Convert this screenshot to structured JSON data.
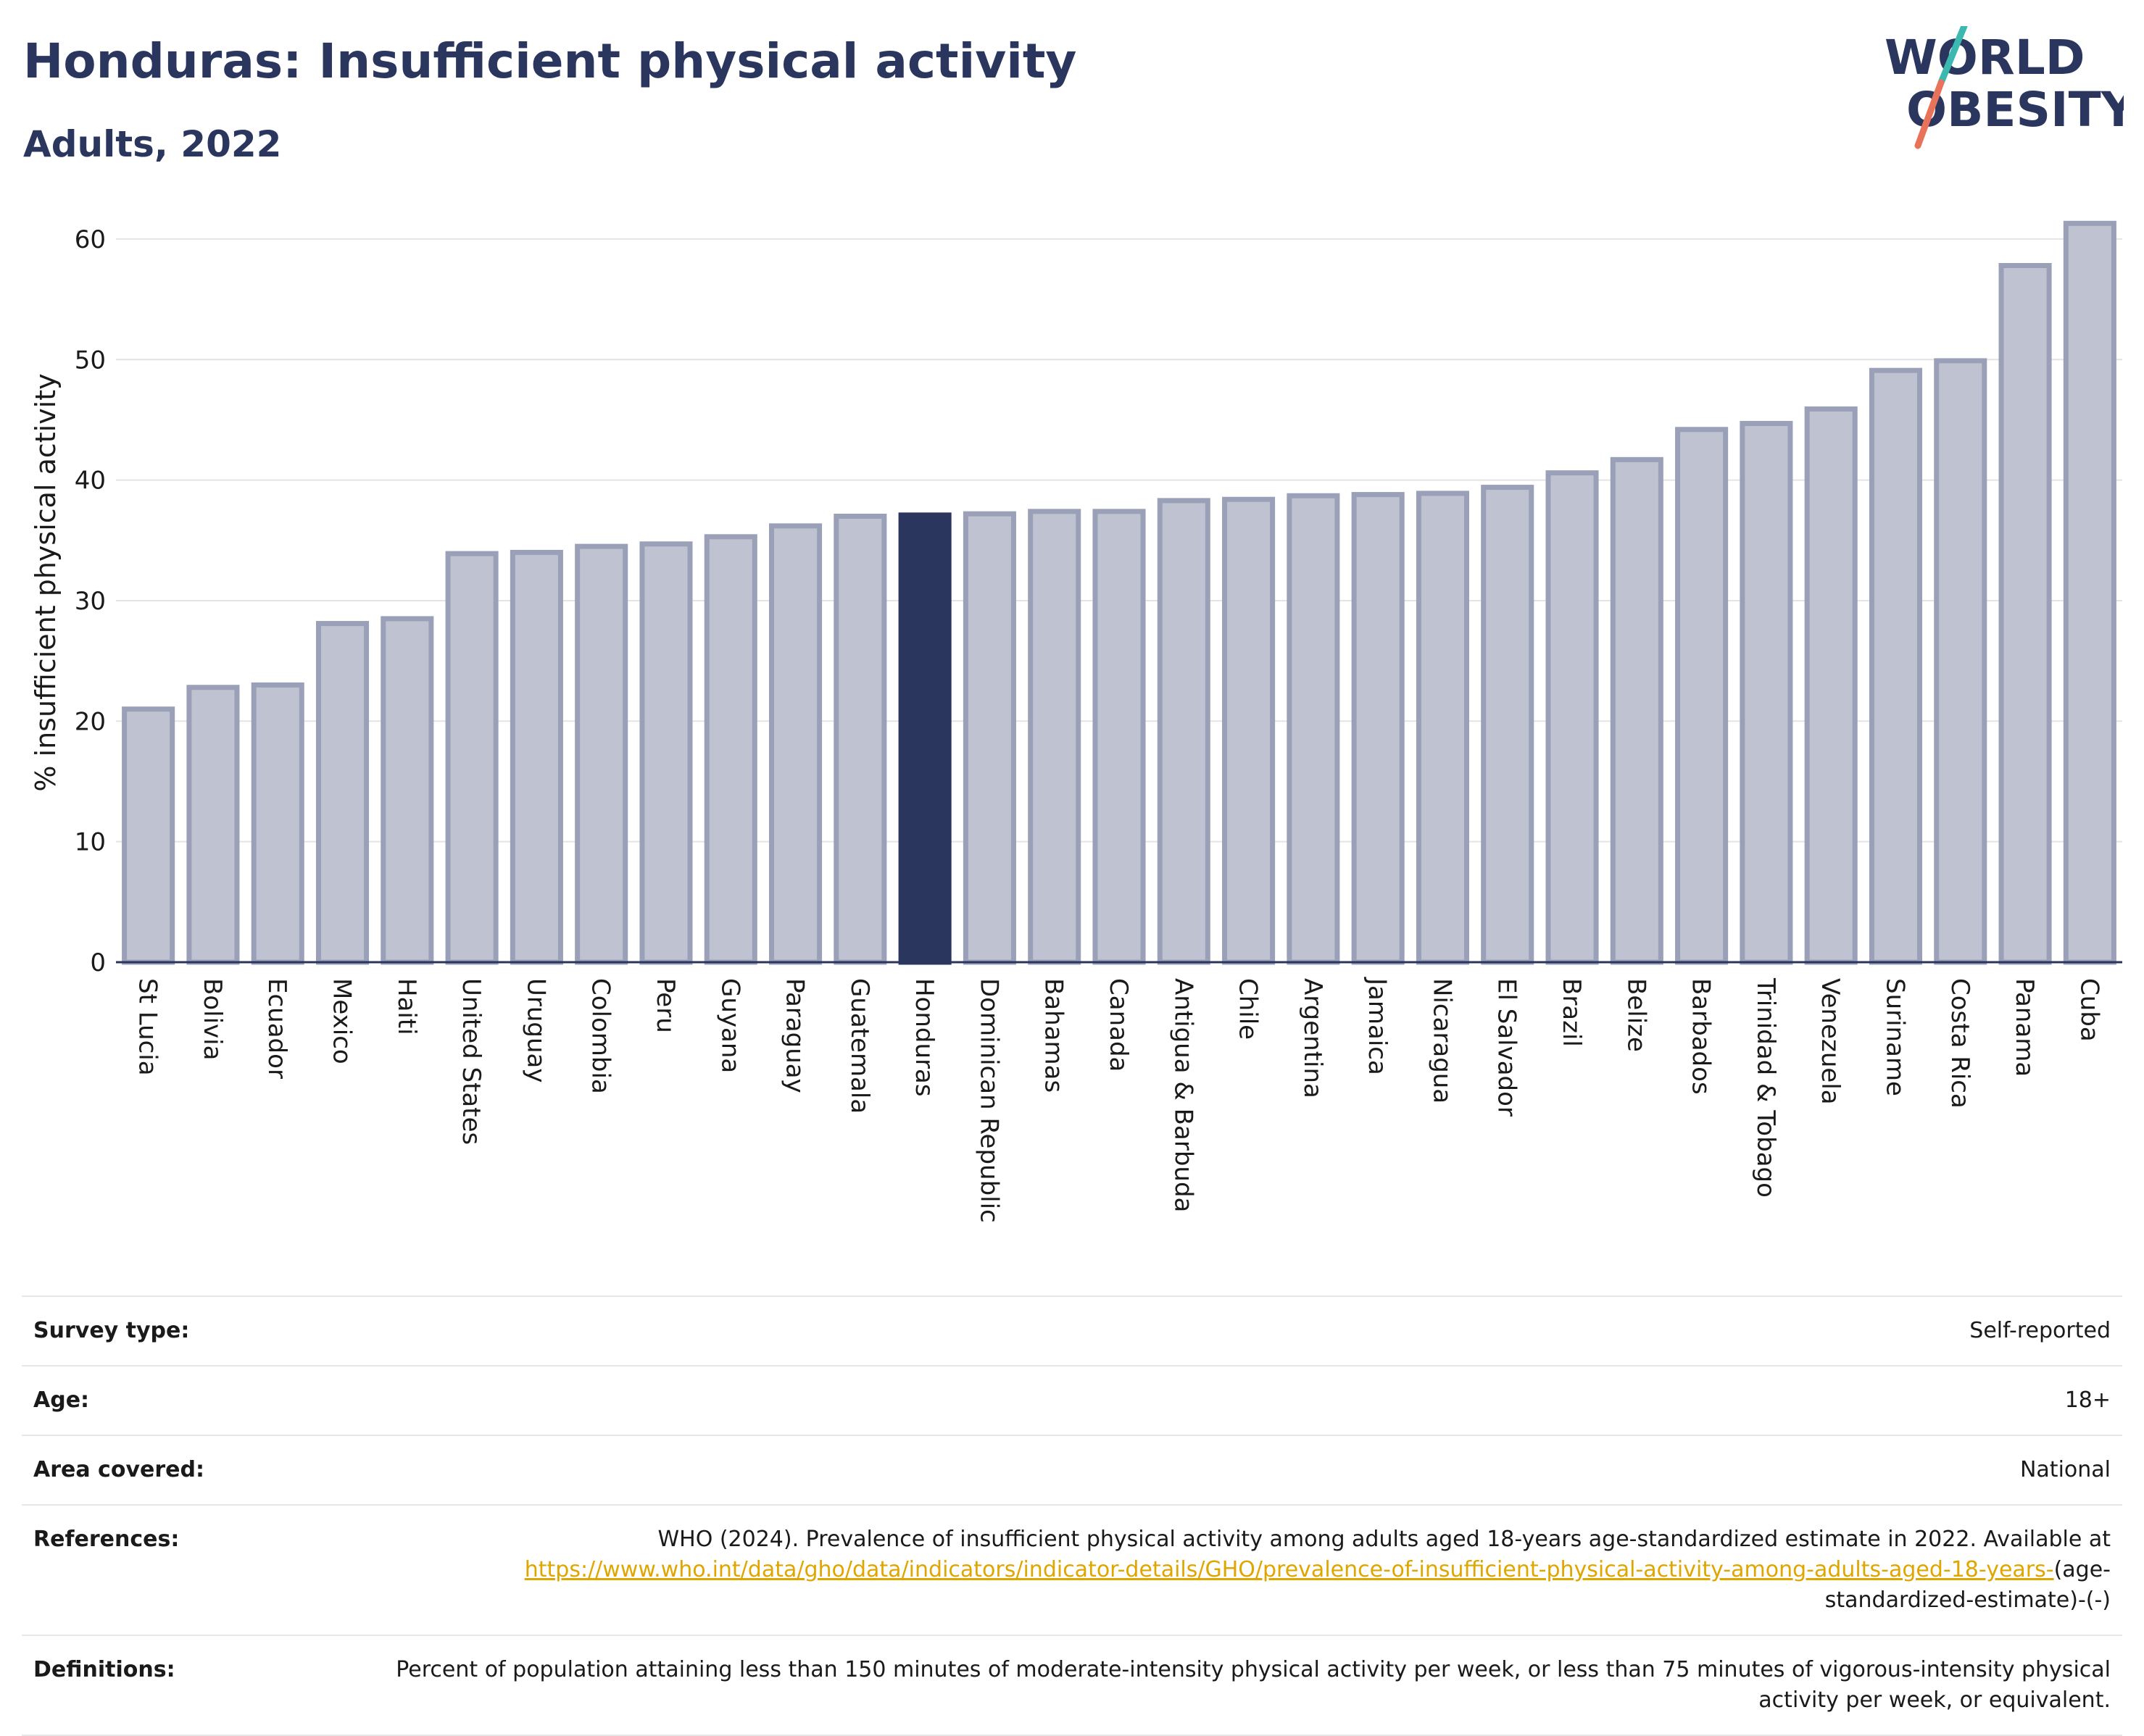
{
  "header": {
    "title": "Honduras: Insufficient physical activity",
    "subtitle": "Adults, 2022"
  },
  "logo": {
    "line1": "WORLD",
    "line2": "OBESITY"
  },
  "chart_data": {
    "type": "bar",
    "ylabel": "% insufficient physical activity",
    "ylim": [
      0,
      63
    ],
    "yticks": [
      0,
      10,
      20,
      30,
      40,
      50,
      60
    ],
    "grid": true,
    "highlight": "Honduras",
    "colors": {
      "bar": "#bfc2d0",
      "bar_border": "#9aa0b7",
      "highlight": "#2b365e"
    },
    "categories": [
      "St Lucia",
      "Bolivia",
      "Ecuador",
      "Mexico",
      "Haiti",
      "United States",
      "Uruguay",
      "Colombia",
      "Peru",
      "Guyana",
      "Paraguay",
      "Guatemala",
      "Honduras",
      "Dominican Republic",
      "Bahamas",
      "Canada",
      "Antigua & Barbuda",
      "Chile",
      "Argentina",
      "Jamaica",
      "Nicaragua",
      "El Salvador",
      "Brazil",
      "Belize",
      "Barbados",
      "Trinidad & Tobago",
      "Venezuela",
      "Suriname",
      "Costa Rica",
      "Panama",
      "Cuba"
    ],
    "values": [
      21.0,
      22.8,
      23.0,
      28.1,
      28.5,
      33.9,
      34.0,
      34.5,
      34.7,
      35.3,
      36.2,
      37.0,
      37.1,
      37.2,
      37.4,
      37.4,
      38.3,
      38.4,
      38.7,
      38.8,
      38.9,
      39.4,
      40.6,
      41.7,
      44.2,
      44.7,
      45.9,
      49.1,
      49.9,
      57.8,
      61.3
    ]
  },
  "info": {
    "rows": [
      {
        "label": "Survey type:",
        "value": "Self-reported"
      },
      {
        "label": "Age:",
        "value": "18+"
      },
      {
        "label": "Area covered:",
        "value": "National"
      }
    ],
    "references": {
      "label": "References:",
      "text": "WHO (2024). Prevalence of insufficient physical activity among adults aged 18-years age-standardized estimate in 2022. Available at",
      "link": "https://www.who.int/data/gho/data/indicators/indicator-details/GHO/prevalence-of-insufficient-physical-activity-among-adults-aged-18-years-",
      "tail": "(age-standardized-estimate)-(-)"
    },
    "definitions": {
      "label": "Definitions:",
      "value": "Percent of population attaining less than 150 minutes of moderate-intensity physical activity per week, or less than 75 minutes of vigorous-intensity physical activity per week, or equivalent."
    }
  }
}
